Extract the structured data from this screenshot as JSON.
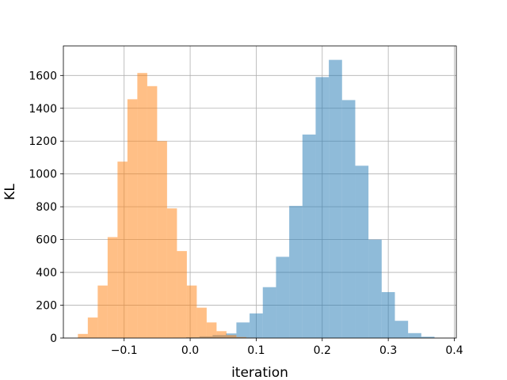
{
  "chart_data": {
    "type": "bar",
    "subtype": "overlapping-histogram",
    "title": "",
    "xlabel": "iteration",
    "ylabel": "KL",
    "xlim": [
      -0.192,
      0.403
    ],
    "ylim": [
      0,
      1780
    ],
    "grid": true,
    "x_ticks": [
      -0.1,
      0.0,
      0.1,
      0.2,
      0.3,
      0.4
    ],
    "x_tick_labels": [
      "−0.1",
      "0.0",
      "0.1",
      "0.2",
      "0.3",
      "0.4"
    ],
    "y_ticks": [
      0,
      200,
      400,
      600,
      800,
      1000,
      1200,
      1400,
      1600
    ],
    "y_tick_labels": [
      "0",
      "200",
      "400",
      "600",
      "800",
      "1000",
      "1200",
      "1400",
      "1600"
    ],
    "series": [
      {
        "color": "#1f77b4",
        "alpha": 0.5,
        "bins": [
          [
            -0.026,
            -0.006,
            2
          ],
          [
            -0.006,
            0.014,
            5
          ],
          [
            0.014,
            0.034,
            10
          ],
          [
            0.034,
            0.054,
            18
          ],
          [
            0.054,
            0.07,
            28
          ],
          [
            0.07,
            0.09,
            95
          ],
          [
            0.09,
            0.11,
            150
          ],
          [
            0.11,
            0.13,
            310
          ],
          [
            0.13,
            0.15,
            495
          ],
          [
            0.15,
            0.17,
            805
          ],
          [
            0.17,
            0.19,
            1240
          ],
          [
            0.19,
            0.21,
            1590
          ],
          [
            0.21,
            0.23,
            1695
          ],
          [
            0.23,
            0.25,
            1450
          ],
          [
            0.25,
            0.27,
            1050
          ],
          [
            0.27,
            0.29,
            600
          ],
          [
            0.29,
            0.31,
            280
          ],
          [
            0.31,
            0.33,
            105
          ],
          [
            0.33,
            0.35,
            30
          ],
          [
            0.35,
            0.37,
            8
          ]
        ]
      },
      {
        "color": "#ff7f0e",
        "alpha": 0.5,
        "bins": [
          [
            -0.17,
            -0.155,
            25
          ],
          [
            -0.155,
            -0.14,
            125
          ],
          [
            -0.14,
            -0.125,
            320
          ],
          [
            -0.125,
            -0.11,
            615
          ],
          [
            -0.11,
            -0.095,
            1075
          ],
          [
            -0.095,
            -0.08,
            1455
          ],
          [
            -0.08,
            -0.065,
            1615
          ],
          [
            -0.065,
            -0.05,
            1535
          ],
          [
            -0.05,
            -0.035,
            1200
          ],
          [
            -0.035,
            -0.02,
            790
          ],
          [
            -0.02,
            -0.005,
            530
          ],
          [
            -0.005,
            0.01,
            320
          ],
          [
            0.01,
            0.025,
            185
          ],
          [
            0.025,
            0.04,
            95
          ],
          [
            0.04,
            0.055,
            42
          ],
          [
            0.055,
            0.07,
            18
          ],
          [
            0.07,
            0.085,
            6
          ],
          [
            0.085,
            0.1,
            2
          ]
        ]
      }
    ]
  }
}
